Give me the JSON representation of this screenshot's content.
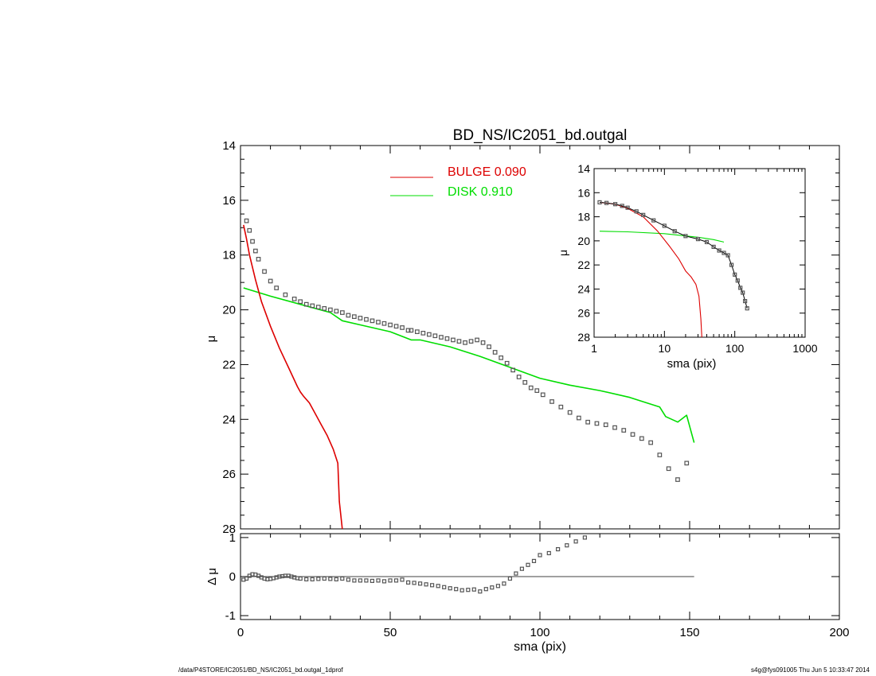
{
  "footer": {
    "path": "/data/P4STORE/IC2051/BD_NS/IC2051_bd.outgal_1dprof",
    "stamp": "s4g@fys091005  Thu Jun  5 10:33:47 2014"
  },
  "colors": {
    "bulge": "#dd0000",
    "disk": "#00dd00",
    "data": "#555555",
    "axis": "#000000"
  },
  "chart_data": [
    {
      "id": "main",
      "type": "line",
      "title": "BD_NS/IC2051_bd.outgal",
      "ylabel": "μ",
      "xlim": [
        0,
        200
      ],
      "ylim": [
        28,
        14
      ],
      "xticks": [],
      "yticks": [
        "14",
        "16",
        "18",
        "20",
        "22",
        "24",
        "26",
        "28"
      ],
      "legend": [
        {
          "label": "BULGE",
          "value": "0.090",
          "color": "#dd0000"
        },
        {
          "label": "DISK",
          "value": "0.910",
          "color": "#00dd00"
        }
      ],
      "series": [
        {
          "name": "BULGE",
          "x": [
            1,
            2,
            3,
            5,
            7,
            10,
            13,
            16,
            19,
            20,
            21,
            23,
            25,
            27,
            29,
            31,
            32.5,
            33,
            34
          ],
          "y": [
            16.9,
            17.4,
            18.0,
            18.9,
            19.7,
            20.6,
            21.4,
            22.1,
            22.8,
            23.0,
            23.15,
            23.4,
            23.8,
            24.2,
            24.6,
            25.1,
            25.6,
            27.0,
            28.0
          ]
        },
        {
          "name": "DISK",
          "x": [
            1,
            10,
            20,
            30,
            34,
            40,
            50,
            57,
            60,
            70,
            80,
            90,
            100,
            110,
            120,
            130,
            140,
            142,
            146,
            149,
            151.5
          ],
          "y": [
            19.2,
            19.5,
            19.8,
            20.1,
            20.4,
            20.55,
            20.8,
            21.1,
            21.1,
            21.35,
            21.7,
            22.1,
            22.5,
            22.75,
            22.95,
            23.2,
            23.55,
            23.9,
            24.1,
            23.85,
            24.85
          ]
        },
        {
          "name": "data",
          "x": [
            2,
            3,
            4,
            5,
            6,
            8,
            10,
            12,
            15,
            18,
            20,
            22,
            24,
            26,
            28,
            30,
            32,
            34,
            36,
            38,
            40,
            42,
            44,
            46,
            48,
            50,
            52,
            54,
            56,
            57,
            59,
            61,
            63,
            65,
            67,
            69,
            71,
            73,
            75,
            77,
            79,
            81,
            83,
            85,
            87,
            89,
            91,
            93,
            95,
            97,
            99,
            101,
            104,
            107,
            110,
            113,
            116,
            119,
            122,
            125,
            128,
            131,
            134,
            137,
            140,
            143,
            146,
            149
          ],
          "y": [
            16.75,
            17.1,
            17.5,
            17.85,
            18.15,
            18.6,
            18.95,
            19.2,
            19.45,
            19.6,
            19.7,
            19.8,
            19.85,
            19.9,
            19.95,
            20.0,
            20.05,
            20.1,
            20.2,
            20.25,
            20.3,
            20.35,
            20.4,
            20.45,
            20.5,
            20.55,
            20.6,
            20.65,
            20.75,
            20.75,
            20.8,
            20.85,
            20.9,
            20.95,
            21.0,
            21.05,
            21.1,
            21.15,
            21.2,
            21.15,
            21.1,
            21.2,
            21.35,
            21.55,
            21.75,
            21.95,
            22.2,
            22.45,
            22.65,
            22.85,
            22.95,
            23.1,
            23.35,
            23.55,
            23.75,
            23.95,
            24.1,
            24.15,
            24.2,
            24.3,
            24.4,
            24.55,
            24.7,
            24.85,
            25.3,
            25.8,
            26.2,
            25.6
          ]
        }
      ]
    },
    {
      "id": "inset",
      "type": "line",
      "xlabel": "sma (pix)",
      "ylabel": "μ",
      "xscale": "log",
      "xlim": [
        1,
        1000
      ],
      "ylim": [
        28,
        14
      ],
      "xticks": [
        "1",
        "10",
        "100",
        "1000"
      ],
      "yticks": [
        "14",
        "16",
        "18",
        "20",
        "22",
        "24",
        "26",
        "28"
      ],
      "series": [
        {
          "name": "BULGE",
          "x": [
            1.2,
            2,
            3,
            5,
            8,
            12,
            16,
            20,
            24,
            28,
            31,
            33,
            34
          ],
          "y": [
            16.8,
            16.95,
            17.3,
            18.0,
            19.2,
            20.5,
            21.5,
            22.5,
            23.0,
            23.6,
            24.6,
            26.5,
            28.0
          ]
        },
        {
          "name": "DISK",
          "x": [
            1.2,
            3,
            10,
            30,
            50,
            70
          ],
          "y": [
            19.2,
            19.25,
            19.4,
            19.7,
            19.9,
            20.1
          ]
        },
        {
          "name": "data",
          "x": [
            1.2,
            1.5,
            2,
            2.5,
            3,
            4,
            5,
            7,
            10,
            14,
            20,
            30,
            40,
            50,
            60,
            70,
            80,
            90,
            100,
            110,
            120,
            130,
            140,
            150
          ],
          "y": [
            16.8,
            16.85,
            16.95,
            17.1,
            17.25,
            17.55,
            17.85,
            18.3,
            18.75,
            19.2,
            19.6,
            19.85,
            20.1,
            20.5,
            20.8,
            21.0,
            21.2,
            22.0,
            22.8,
            23.3,
            23.9,
            24.3,
            25.0,
            25.6
          ]
        }
      ]
    },
    {
      "id": "residual",
      "type": "scatter",
      "xlabel": "sma (pix)",
      "ylabel": "Δ μ",
      "xlim": [
        0,
        200
      ],
      "ylim": [
        -1.1,
        1.1
      ],
      "xticks": [
        "0",
        "50",
        "100",
        "150",
        "200"
      ],
      "yticks": [
        "1",
        "0",
        "-1"
      ],
      "reference_line": {
        "y": 0,
        "x_from": 0,
        "x_to": 151.5
      },
      "series": [
        {
          "name": "Δ μ",
          "x": [
            1,
            2,
            3,
            4,
            5,
            6,
            7,
            8,
            9,
            10,
            11,
            12,
            13,
            14,
            15,
            16,
            17,
            18,
            19,
            20,
            22,
            24,
            26,
            28,
            30,
            32,
            34,
            36,
            38,
            40,
            42,
            44,
            46,
            48,
            50,
            52,
            54,
            56,
            58,
            60,
            62,
            64,
            66,
            68,
            70,
            72,
            74,
            76,
            78,
            80,
            82,
            84,
            86,
            88,
            90,
            92,
            94,
            96,
            98,
            100,
            103,
            106,
            109,
            112,
            115
          ],
          "y": [
            -0.08,
            -0.05,
            0.02,
            0.06,
            0.05,
            0.02,
            -0.02,
            -0.05,
            -0.07,
            -0.06,
            -0.04,
            -0.02,
            0.0,
            0.01,
            0.02,
            0.02,
            0.0,
            -0.02,
            -0.04,
            -0.05,
            -0.07,
            -0.07,
            -0.06,
            -0.05,
            -0.06,
            -0.07,
            -0.05,
            -0.08,
            -0.1,
            -0.1,
            -0.1,
            -0.11,
            -0.1,
            -0.12,
            -0.1,
            -0.1,
            -0.08,
            -0.15,
            -0.16,
            -0.18,
            -0.2,
            -0.22,
            -0.24,
            -0.27,
            -0.3,
            -0.32,
            -0.35,
            -0.34,
            -0.33,
            -0.38,
            -0.32,
            -0.28,
            -0.24,
            -0.18,
            -0.05,
            0.08,
            0.2,
            0.3,
            0.4,
            0.55,
            0.6,
            0.7,
            0.8,
            0.9,
            1.0
          ]
        }
      ]
    }
  ]
}
